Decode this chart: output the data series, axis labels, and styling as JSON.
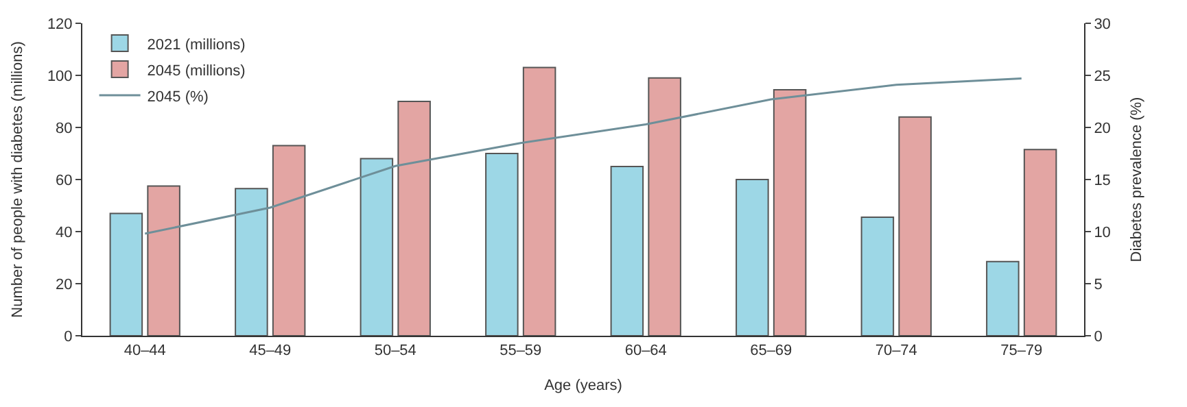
{
  "chart_data": {
    "type": "bar",
    "xlabel": "Age (years)",
    "ylabel": "Number of people with diabetes (millions)",
    "y2label": "Diabetes prevalence (%)",
    "categories": [
      "40–44",
      "45–49",
      "50–54",
      "55–59",
      "60–64",
      "65–69",
      "70–74",
      "75–79"
    ],
    "series": [
      {
        "name": "2021 (millions)",
        "color": "#9dd7e6",
        "values": [
          47,
          56.5,
          68,
          70,
          65,
          60,
          45.5,
          28.5
        ]
      },
      {
        "name": "2045 (millions)",
        "color": "#e3a5a3",
        "values": [
          57.5,
          73,
          90,
          103,
          99,
          94.5,
          84,
          71.5
        ]
      },
      {
        "name": "2045 (%)",
        "type": "line",
        "axis": "y2",
        "color": "#6e8f99",
        "values": [
          9.8,
          12.3,
          16.3,
          18.5,
          20.3,
          22.7,
          24.1,
          24.7
        ]
      }
    ],
    "ylim": [
      0,
      120
    ],
    "yticks": [
      0,
      20,
      40,
      60,
      80,
      100,
      120
    ],
    "y2lim": [
      0,
      30
    ],
    "y2ticks": [
      0,
      5,
      10,
      15,
      20,
      25,
      30
    ],
    "legend": "top left",
    "marker": "none",
    "line_style": "solid"
  }
}
